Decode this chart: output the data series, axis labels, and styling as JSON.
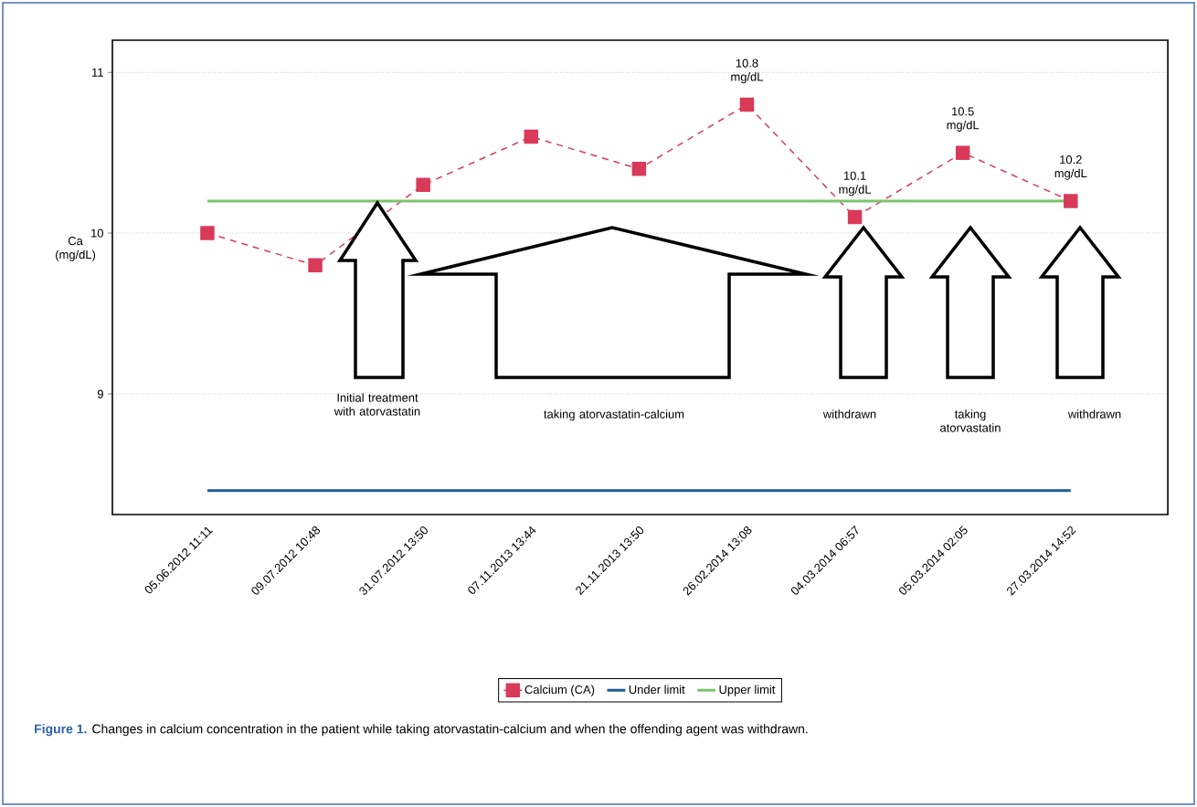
{
  "chart_data": {
    "type": "line",
    "ylabel": "Ca (mg/dL)",
    "categories": [
      "05.06.2012 11:11",
      "09.07.2012 10:48",
      "31.07.2012 13:50",
      "07.11.2013 13:44",
      "21.11.2013 13:50",
      "26.02.2014 13:08",
      "04.03.2014 06:57",
      "05.03.2014 02:05",
      "27.03.2014 14:52"
    ],
    "series": [
      {
        "name": "Calcium (CA)",
        "color": "#d93a5a",
        "values": [
          10,
          9.8,
          10.3,
          10.6,
          10.4,
          10.8,
          10.1,
          10.5,
          10.2
        ],
        "marker": "square",
        "line_style": "dashed",
        "value_labels": [
          null,
          null,
          null,
          null,
          null,
          "10.8 mg/dL",
          "10.1 mg/dL",
          "10.5 mg/dL",
          "10.2 mg/dL"
        ]
      },
      {
        "name": "Under limit",
        "color": "#1b5c94",
        "values": [
          8.4,
          8.4,
          8.4,
          8.4,
          8.4,
          8.4,
          8.4,
          8.4,
          8.4
        ],
        "marker": "none",
        "line_style": "solid"
      },
      {
        "name": "Upper limit",
        "color": "#7cc46c",
        "values": [
          10.2,
          10.2,
          10.2,
          10.2,
          10.2,
          10.2,
          10.2,
          10.2,
          10.2
        ],
        "marker": "none",
        "line_style": "solid"
      }
    ],
    "ylim": [
      8.25,
      11.2
    ],
    "yticks": [
      9,
      10,
      11
    ],
    "grid": "y",
    "legend": "bottom",
    "annotations": [
      "Initial treatment with atorvastatin",
      "taking atorvastatin-calcium",
      "withdrawn",
      "taking atorvastatin",
      "withdrawn",
      "Figure 1.",
      "Changes in calcium concentration in the patient while taking atorvastatin-calcium and when the offending agent was withdrawn."
    ]
  }
}
